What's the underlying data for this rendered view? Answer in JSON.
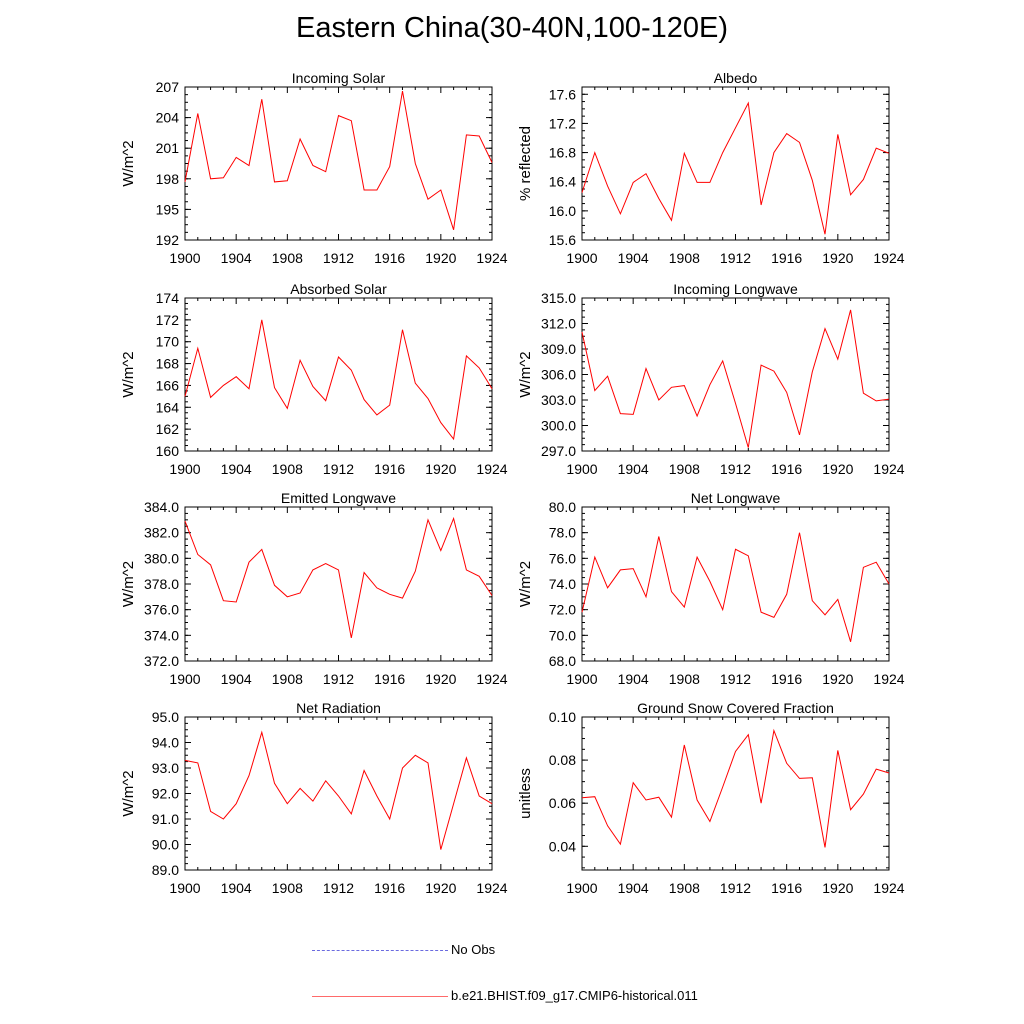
{
  "title": "Eastern China(30-40N,100-120E)",
  "colors": {
    "series": "#ff0000",
    "obs": "#6a6adf",
    "axis": "#000000"
  },
  "legend": {
    "obs_label": "No Obs",
    "model_label": "b.e21.BHIST.f09_g17.CMIP6-historical.011"
  },
  "x_tick_labels": [
    "1900",
    "1904",
    "1908",
    "1912",
    "1916",
    "1920",
    "1924"
  ],
  "chart_data": [
    {
      "type": "line",
      "title": "Incoming Solar",
      "ylabel": "W/m^2",
      "xlim": [
        1900,
        1924
      ],
      "ylim": [
        192,
        207
      ],
      "y_tick_labels": [
        "192",
        "195",
        "198",
        "201",
        "204",
        "207"
      ],
      "x": [
        1900,
        1901,
        1902,
        1903,
        1904,
        1905,
        1906,
        1907,
        1908,
        1909,
        1910,
        1911,
        1912,
        1913,
        1914,
        1915,
        1916,
        1917,
        1918,
        1919,
        1920,
        1921,
        1922,
        1923,
        1924
      ],
      "values": [
        197.7,
        204.4,
        198.0,
        198.1,
        200.1,
        199.3,
        205.8,
        197.7,
        197.8,
        201.9,
        199.3,
        198.7,
        204.2,
        203.7,
        196.9,
        196.9,
        199.2,
        206.6,
        199.5,
        196.0,
        196.9,
        193.0,
        202.3,
        202.2,
        199.6
      ]
    },
    {
      "type": "line",
      "title": "Albedo",
      "ylabel": "% reflected",
      "xlim": [
        1900,
        1924
      ],
      "ylim": [
        15.6,
        17.7
      ],
      "y_tick_labels": [
        "15.6",
        "16.0",
        "16.4",
        "16.8",
        "17.2",
        "17.6"
      ],
      "x": [
        1900,
        1901,
        1902,
        1903,
        1904,
        1905,
        1906,
        1907,
        1908,
        1909,
        1910,
        1911,
        1912,
        1913,
        1914,
        1915,
        1916,
        1917,
        1918,
        1919,
        1920,
        1921,
        1922,
        1923,
        1924
      ],
      "values": [
        16.25,
        16.8,
        16.34,
        15.96,
        16.39,
        16.51,
        16.17,
        15.87,
        16.79,
        16.39,
        16.39,
        16.8,
        17.14,
        17.48,
        16.08,
        16.8,
        17.06,
        16.94,
        16.42,
        15.68,
        17.05,
        16.22,
        16.43,
        16.86,
        16.79
      ]
    },
    {
      "type": "line",
      "title": "Absorbed Solar",
      "ylabel": "W/m^2",
      "xlim": [
        1900,
        1924
      ],
      "ylim": [
        160,
        174
      ],
      "y_tick_labels": [
        "160",
        "162",
        "164",
        "166",
        "168",
        "170",
        "172",
        "174"
      ],
      "x": [
        1900,
        1901,
        1902,
        1903,
        1904,
        1905,
        1906,
        1907,
        1908,
        1909,
        1910,
        1911,
        1912,
        1913,
        1914,
        1915,
        1916,
        1917,
        1918,
        1919,
        1920,
        1921,
        1922,
        1923,
        1924
      ],
      "values": [
        165.0,
        169.4,
        164.9,
        166.0,
        166.8,
        165.7,
        172.0,
        165.8,
        163.9,
        168.3,
        165.9,
        164.6,
        168.6,
        167.4,
        164.7,
        163.3,
        164.2,
        171.1,
        166.2,
        164.8,
        162.6,
        161.1,
        168.7,
        167.6,
        165.7
      ]
    },
    {
      "type": "line",
      "title": "Incoming Longwave",
      "ylabel": "W/m^2",
      "xlim": [
        1900,
        1924
      ],
      "ylim": [
        297.0,
        315.0
      ],
      "y_tick_labels": [
        "297.0",
        "300.0",
        "303.0",
        "306.0",
        "309.0",
        "312.0",
        "315.0"
      ],
      "x": [
        1900,
        1901,
        1902,
        1903,
        1904,
        1905,
        1906,
        1907,
        1908,
        1909,
        1910,
        1911,
        1912,
        1913,
        1914,
        1915,
        1916,
        1917,
        1918,
        1919,
        1920,
        1921,
        1922,
        1923,
        1924
      ],
      "values": [
        311.0,
        304.1,
        305.8,
        301.4,
        301.3,
        306.7,
        303.0,
        304.5,
        304.7,
        301.1,
        304.8,
        307.6,
        302.6,
        297.4,
        307.1,
        306.4,
        303.9,
        298.9,
        306.3,
        311.4,
        307.8,
        313.6,
        303.8,
        302.9,
        303.1
      ]
    },
    {
      "type": "line",
      "title": "Emitted Longwave",
      "ylabel": "W/m^2",
      "xlim": [
        1900,
        1924
      ],
      "ylim": [
        372.0,
        384.0
      ],
      "y_tick_labels": [
        "372.0",
        "374.0",
        "376.0",
        "378.0",
        "380.0",
        "382.0",
        "384.0"
      ],
      "x": [
        1900,
        1901,
        1902,
        1903,
        1904,
        1905,
        1906,
        1907,
        1908,
        1909,
        1910,
        1911,
        1912,
        1913,
        1914,
        1915,
        1916,
        1917,
        1918,
        1919,
        1920,
        1921,
        1922,
        1923,
        1924
      ],
      "values": [
        382.9,
        380.3,
        379.5,
        376.7,
        376.6,
        379.7,
        380.7,
        377.9,
        377.0,
        377.3,
        379.1,
        379.6,
        379.1,
        373.8,
        378.9,
        377.7,
        377.2,
        376.9,
        379.0,
        383.0,
        380.6,
        383.1,
        379.1,
        378.6,
        377.1
      ]
    },
    {
      "type": "line",
      "title": "Net Longwave",
      "ylabel": "W/m^2",
      "xlim": [
        1900,
        1924
      ],
      "ylim": [
        68.0,
        80.0
      ],
      "y_tick_labels": [
        "68.0",
        "70.0",
        "72.0",
        "74.0",
        "76.0",
        "78.0",
        "80.0"
      ],
      "x": [
        1900,
        1901,
        1902,
        1903,
        1904,
        1905,
        1906,
        1907,
        1908,
        1909,
        1910,
        1911,
        1912,
        1913,
        1914,
        1915,
        1916,
        1917,
        1918,
        1919,
        1920,
        1921,
        1922,
        1923,
        1924
      ],
      "values": [
        71.8,
        76.1,
        73.7,
        75.1,
        75.2,
        73.0,
        77.7,
        73.4,
        72.2,
        76.1,
        74.2,
        72.0,
        76.7,
        76.2,
        71.8,
        71.4,
        73.2,
        78.0,
        72.7,
        71.6,
        72.8,
        69.5,
        75.3,
        75.7,
        74.0
      ]
    },
    {
      "type": "line",
      "title": "Net Radiation",
      "ylabel": "W/m^2",
      "xlim": [
        1900,
        1924
      ],
      "ylim": [
        89.0,
        95.0
      ],
      "y_tick_labels": [
        "89.0",
        "90.0",
        "91.0",
        "92.0",
        "93.0",
        "94.0",
        "95.0"
      ],
      "x": [
        1900,
        1901,
        1902,
        1903,
        1904,
        1905,
        1906,
        1907,
        1908,
        1909,
        1910,
        1911,
        1912,
        1913,
        1914,
        1915,
        1916,
        1917,
        1918,
        1919,
        1920,
        1921,
        1922,
        1923,
        1924
      ],
      "values": [
        93.3,
        93.2,
        91.3,
        91.0,
        91.6,
        92.7,
        94.4,
        92.4,
        91.6,
        92.2,
        91.7,
        92.5,
        91.9,
        91.2,
        92.9,
        91.9,
        91.0,
        93.0,
        93.5,
        93.2,
        89.8,
        91.6,
        93.4,
        91.9,
        91.6
      ]
    },
    {
      "type": "line",
      "title": "Ground Snow Covered Fraction",
      "ylabel": "unitless",
      "xlim": [
        1900,
        1924
      ],
      "ylim": [
        0.029,
        0.1
      ],
      "y_tick_labels": [
        "0.04",
        "0.06",
        "0.08",
        "0.10"
      ],
      "x": [
        1900,
        1901,
        1902,
        1903,
        1904,
        1905,
        1906,
        1907,
        1908,
        1909,
        1910,
        1911,
        1912,
        1913,
        1914,
        1915,
        1916,
        1917,
        1918,
        1919,
        1920,
        1921,
        1922,
        1923,
        1924
      ],
      "values": [
        0.0625,
        0.063,
        0.0495,
        0.041,
        0.0695,
        0.0615,
        0.0628,
        0.0535,
        0.087,
        0.0615,
        0.0515,
        0.0675,
        0.084,
        0.0918,
        0.06,
        0.0937,
        0.0785,
        0.0715,
        0.0718,
        0.0395,
        0.0845,
        0.057,
        0.0642,
        0.0758,
        0.074
      ]
    }
  ]
}
